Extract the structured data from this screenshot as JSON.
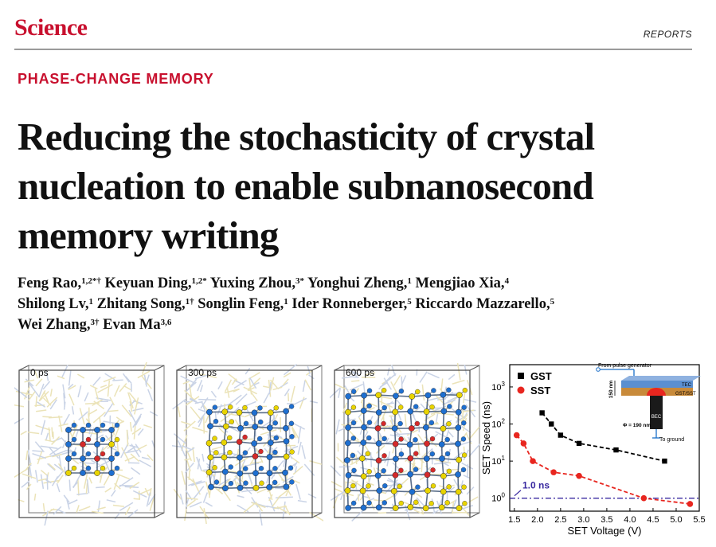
{
  "header": {
    "journal": "Science",
    "section": "REPORTS"
  },
  "article": {
    "kicker": "PHASE-CHANGE MEMORY",
    "title_lines": [
      "Reducing the stochasticity of crystal",
      "nucleation to enable subnanosecond",
      "memory writing"
    ]
  },
  "authors": {
    "line1": [
      {
        "name": "Feng Rao,",
        "sup": "1,2",
        "mark": "*†"
      },
      {
        "name": "Keyuan Ding,",
        "sup": "1,2",
        "mark": "*"
      },
      {
        "name": "Yuxing Zhou,",
        "sup": "3",
        "mark": "*"
      },
      {
        "name": "Yonghui Zheng,",
        "sup": "1",
        "mark": ""
      },
      {
        "name": "Mengjiao Xia,",
        "sup": "4",
        "mark": ""
      }
    ],
    "line2": [
      {
        "name": "Shilong Lv,",
        "sup": "1",
        "mark": ""
      },
      {
        "name": "Zhitang Song,",
        "sup": "1",
        "mark": "†"
      },
      {
        "name": "Songlin Feng,",
        "sup": "1",
        "mark": ""
      },
      {
        "name": "Ider Ronneberger,",
        "sup": "5",
        "mark": ""
      },
      {
        "name": "Riccardo Mazzarello,",
        "sup": "5",
        "mark": ""
      }
    ],
    "line3": [
      {
        "name": "Wei Zhang,",
        "sup": "3",
        "mark": "†"
      },
      {
        "name": "Evan Ma",
        "sup": "3,6",
        "mark": ""
      }
    ]
  },
  "snapshots": [
    {
      "label": "0 ps"
    },
    {
      "label": "300 ps"
    },
    {
      "label": "600 ps"
    }
  ],
  "colors": {
    "brand": "#c8102e",
    "atom_blue": "#1e6fd0",
    "atom_red": "#d42a2a",
    "atom_yellow": "#e8d400",
    "gst_marker": "#000000",
    "sst_marker": "#e8261f",
    "threshold_line": "#3a2aa0"
  },
  "chart_data": {
    "type": "scatter",
    "xlabel": "SET Voltage (V)",
    "ylabel": "SET Speed (ns)",
    "xlim": [
      1.4,
      5.5
    ],
    "ylim_log10": [
      -0.35,
      3.6
    ],
    "y_scale": "log",
    "x_ticks": [
      "1.5",
      "2.0",
      "2.5",
      "3.0",
      "3.5",
      "4.0",
      "4.5",
      "5.0",
      "5.5"
    ],
    "y_ticks": [
      {
        "value": 1,
        "base": "10",
        "exp": "0"
      },
      {
        "value": 10,
        "base": "10",
        "exp": "1"
      },
      {
        "value": 100,
        "base": "10",
        "exp": "2"
      },
      {
        "value": 1000,
        "base": "10",
        "exp": "3"
      }
    ],
    "legend_position": "top-left",
    "series": [
      {
        "name": "GST",
        "marker": "square",
        "color": "#000000",
        "x": [
          2.1,
          2.3,
          2.5,
          2.9,
          3.7,
          4.75
        ],
        "y": [
          200,
          100,
          50,
          30,
          20,
          10
        ]
      },
      {
        "name": "SST",
        "marker": "circle",
        "color": "#e8261f",
        "x": [
          1.55,
          1.7,
          1.9,
          2.35,
          2.9,
          4.3,
          5.3
        ],
        "y": [
          50,
          30,
          10,
          5,
          4,
          1.0,
          0.7
        ]
      }
    ],
    "threshold": {
      "y": 1.0,
      "label": "1.0 ns"
    },
    "inset": {
      "top_label": "From pulse generator",
      "tec_label": "TEC",
      "layer_label": "GST/SST",
      "thickness_label": "150 nm",
      "bec_label": "BEC",
      "diameter_label": "Φ = 190 nm",
      "ground_label": "To ground"
    }
  }
}
